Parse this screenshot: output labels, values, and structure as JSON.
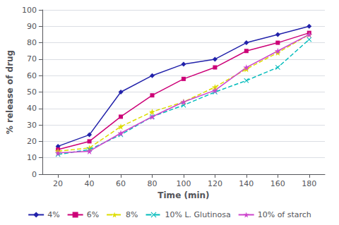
{
  "chart_data": {
    "type": "line",
    "x": [
      20,
      40,
      60,
      80,
      100,
      120,
      140,
      160,
      180
    ],
    "series": [
      {
        "name": "4%",
        "color": "#2222aa",
        "marker": "diamond",
        "line_style": "solid",
        "values": [
          17,
          24,
          50,
          60,
          67,
          70,
          80,
          85,
          90
        ]
      },
      {
        "name": "6%",
        "color": "#cc0077",
        "marker": "square",
        "line_style": "solid",
        "values": [
          15,
          20,
          35,
          48,
          58,
          65,
          75,
          80,
          86
        ]
      },
      {
        "name": "8%",
        "color": "#dddd00",
        "marker": "star",
        "line_style": "dashed",
        "values": [
          14,
          16,
          29,
          38,
          44,
          53,
          64,
          74,
          85
        ]
      },
      {
        "name": "10% L. Glutinosa",
        "color": "#00bbbb",
        "marker": "x",
        "line_style": "dashed",
        "values": [
          12,
          15,
          24,
          35,
          42,
          50,
          57,
          65,
          82
        ]
      },
      {
        "name": "10% of starch",
        "color": "#cc44cc",
        "marker": "star",
        "line_style": "solid",
        "values": [
          13,
          14,
          25,
          35,
          44,
          51,
          65,
          75,
          85
        ]
      }
    ],
    "xlabel": "Time (min)",
    "ylabel": "% release of drug",
    "xlim": [
      10,
      190
    ],
    "ylim": [
      0,
      100
    ],
    "xticks": [
      20,
      40,
      60,
      80,
      100,
      120,
      140,
      160,
      180
    ],
    "yticks": [
      0,
      10,
      20,
      30,
      40,
      50,
      60,
      70,
      80,
      90,
      100
    ],
    "grid": true,
    "legend": "bottom"
  }
}
